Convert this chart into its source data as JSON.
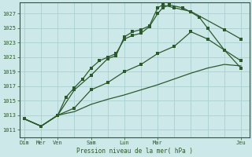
{
  "background_color": "#cce8e8",
  "grid_color": "#aad0d0",
  "line_color": "#2d5a2d",
  "xlabel": "Pression niveau de la mer( hPa )",
  "ylim": [
    1010,
    1028.5
  ],
  "yticks": [
    1011,
    1013,
    1015,
    1017,
    1019,
    1021,
    1023,
    1025,
    1027
  ],
  "xtick_pos": [
    0,
    1,
    2,
    4,
    6,
    8,
    13
  ],
  "xtick_labs": [
    "Dim",
    "Mer",
    "Ven",
    "Sam",
    "Lun",
    "Mar",
    "Jeu"
  ],
  "line1_x": [
    0,
    1,
    2,
    2.5,
    3,
    3.5,
    4,
    4.5,
    5,
    5.5,
    6,
    6.5,
    7,
    7.5,
    8,
    8.3,
    8.7,
    9.5,
    10,
    10.5,
    11,
    12,
    13
  ],
  "line1_y": [
    1012.5,
    1011.5,
    1013.0,
    1015.5,
    1016.8,
    1018.0,
    1019.5,
    1020.5,
    1021.0,
    1021.5,
    1023.5,
    1024.0,
    1024.3,
    1025.2,
    1027.0,
    1027.8,
    1028.2,
    1027.8,
    1027.2,
    1026.5,
    1025.0,
    1022.0,
    1020.5
  ],
  "line2_x": [
    0,
    1,
    2,
    3,
    4,
    5,
    5.5,
    6,
    6.5,
    7,
    7.5,
    8,
    8.3,
    9,
    10,
    12,
    13
  ],
  "line2_y": [
    1012.5,
    1011.5,
    1013.0,
    1016.5,
    1018.5,
    1020.8,
    1021.2,
    1023.8,
    1024.5,
    1024.8,
    1025.3,
    1027.8,
    1028.2,
    1027.8,
    1027.3,
    1024.8,
    1023.5
  ],
  "line3_x": [
    0,
    1,
    2,
    3,
    4,
    5,
    6,
    7,
    8,
    9,
    10,
    11,
    12,
    13
  ],
  "line3_y": [
    1012.5,
    1011.5,
    1013.0,
    1014.0,
    1016.5,
    1017.5,
    1019.0,
    1020.0,
    1021.5,
    1022.5,
    1024.5,
    1023.5,
    1022.0,
    1019.5
  ],
  "line4_x": [
    0,
    1,
    2,
    3,
    4,
    5,
    6,
    7,
    8,
    9,
    10,
    11,
    12,
    13
  ],
  "line4_y": [
    1012.5,
    1011.5,
    1013.0,
    1013.5,
    1014.5,
    1015.2,
    1015.8,
    1016.5,
    1017.2,
    1018.0,
    1018.8,
    1019.5,
    1020.0,
    1019.8
  ]
}
